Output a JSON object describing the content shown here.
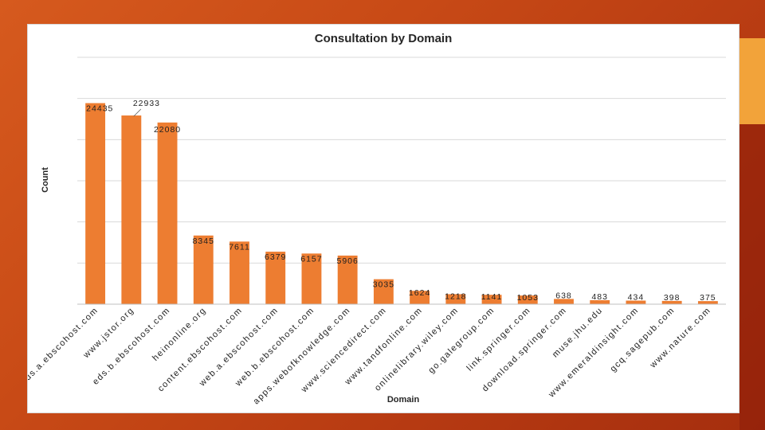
{
  "chart_data": {
    "type": "bar",
    "title": "Consultation by Domain",
    "xlabel": "Domain",
    "ylabel": "Count",
    "ylim": [
      0,
      30000
    ],
    "grid": true,
    "colors": {
      "bar": "#ed7d31",
      "grid": "#d9d9d9",
      "axis": "#bfbfbf",
      "text": "#262626"
    },
    "categories": [
      "eds.a.ebscohost.com",
      "www.jstor.org",
      "eds.b.ebscohost.com",
      "heinonline.org",
      "content.ebscohost.com",
      "web.a.ebscohost.com",
      "web.b.ebscohost.com",
      "apps.webofknowledge.com",
      "www.sciencedirect.com",
      "www.tandfonline.com",
      "onlinelibrary.wiley.com",
      "go.galegroup.com",
      "link.springer.com",
      "download.springer.com",
      "muse.jhu.edu",
      "www.emeraldinsight.com",
      "gcq.sagepub.com",
      "www.nature.com"
    ],
    "values": [
      24435,
      22933,
      22080,
      8345,
      7611,
      6379,
      6157,
      5906,
      3035,
      1624,
      1218,
      1141,
      1053,
      638,
      483,
      434,
      398,
      375
    ],
    "labels": [
      "24435",
      "22933",
      "22080",
      "8345",
      "7611",
      "6379",
      "6157",
      "5906",
      "3035",
      "1624",
      "1218",
      "1141",
      "1053",
      "638",
      "483",
      "434",
      "398",
      "375"
    ]
  }
}
